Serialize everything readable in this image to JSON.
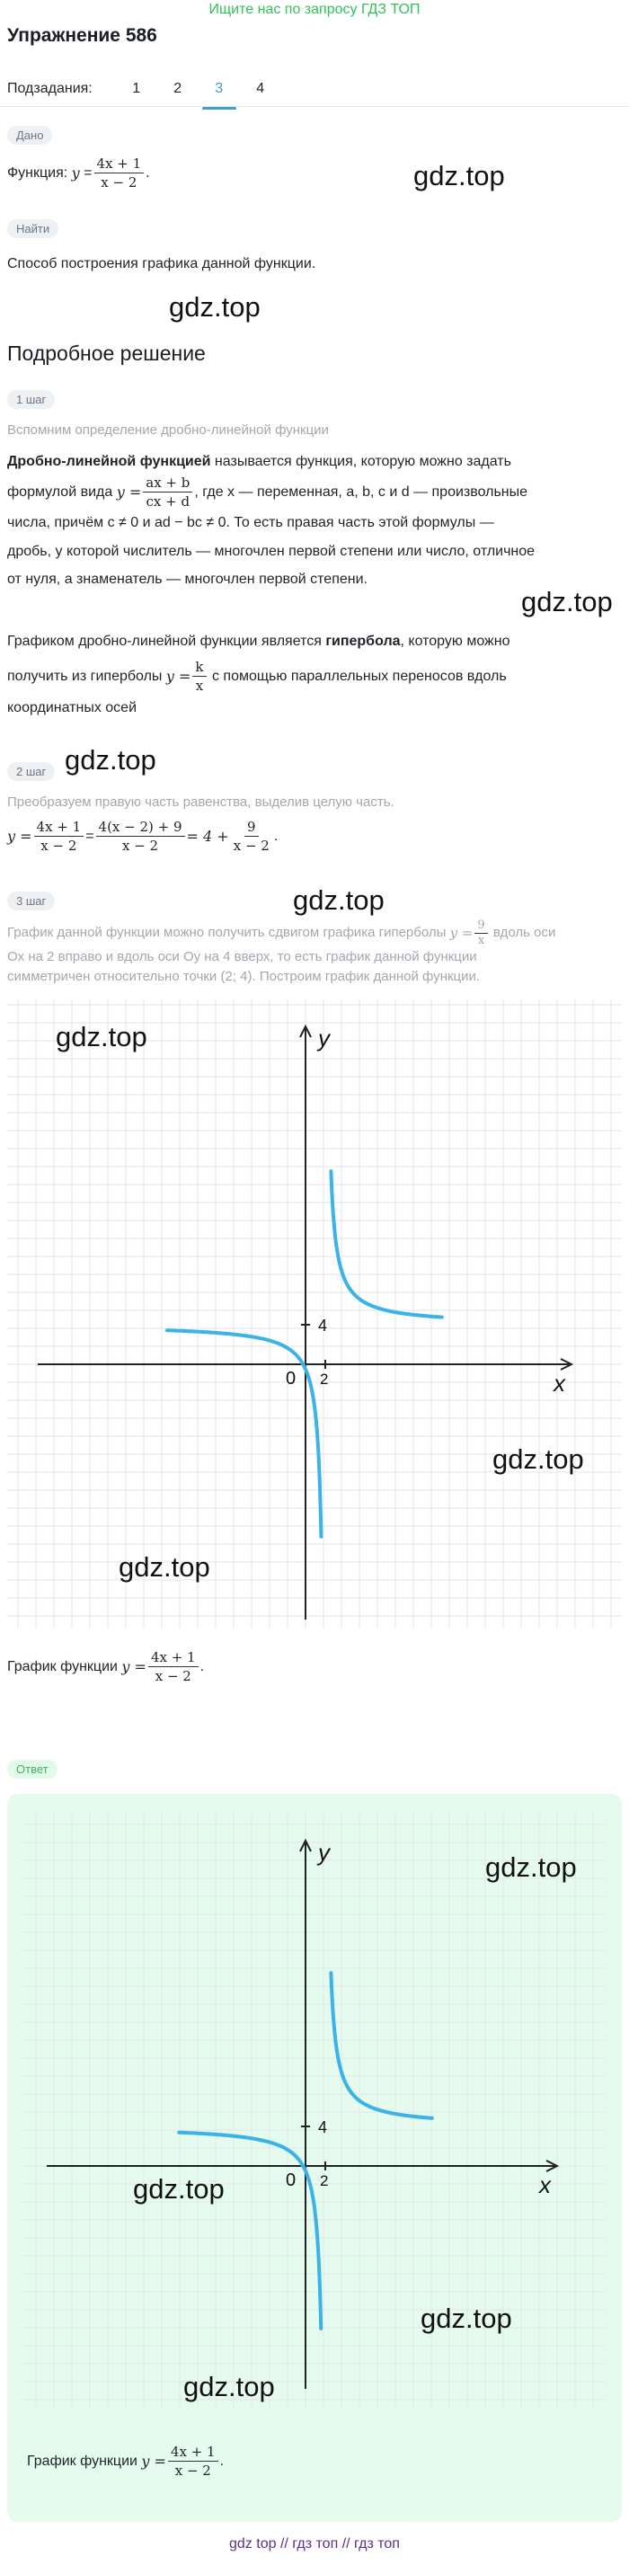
{
  "banner": "Ищите нас по запросу ГДЗ ТОП",
  "title": "Упражнение 586",
  "subtasks": {
    "label": "Подзадания:",
    "tabs": [
      "1",
      "2",
      "3",
      "4"
    ],
    "active": "3"
  },
  "given": {
    "chip": "Дано",
    "prefix": "Функция:",
    "y": "y",
    "num": "4x + 1",
    "den": "x − 2",
    "suffix": "."
  },
  "find": {
    "chip": "Найти",
    "text": "Способ построения графика данной функции."
  },
  "watermark": "gdz.top",
  "solution": {
    "heading": "Подробное решение",
    "step1": {
      "chip": "1 шаг",
      "hint": "Вспомним определение дробно-линейной функции",
      "p1_bold": "Дробно-линейной функцией",
      "p1_a": " называется функция, которую можно задать",
      "p1_b": "формулой вида",
      "p1_y": "y =",
      "p1_num": "ax + b",
      "p1_den": "cx + d",
      "p1_c": ", где x — переменная, a, b, c и d — произвольные",
      "p1_d": "числа, причём c ≠ 0 и ad − bc ≠ 0. То есть правая часть этой формулы —",
      "p1_e": "дробь, у которой числитель — многочлен первой степени или число, отличное",
      "p1_f": "от нуля, а знаменатель — многочлен первой степени.",
      "p2_a": "Графиком дробно-линейной функции является ",
      "p2_bold": "гипербола",
      "p2_b": ", которую можно",
      "p2_c": "получить из гиперболы",
      "p2_y": "y =",
      "p2_num": "k",
      "p2_den": "x",
      "p2_d": "с помощью параллельных переносов вдоль",
      "p2_e": "координатных осей"
    },
    "step2": {
      "chip": "2 шаг",
      "hint": "Преобразуем правую часть равенства, выделив целую часть.",
      "y": "y =",
      "f1_num": "4x + 1",
      "f1_den": "x − 2",
      "eq": "=",
      "f2_num": "4(x − 2) + 9",
      "f2_den": "x − 2",
      "mid": "= 4 +",
      "f3_num": "9",
      "f3_den": "x − 2",
      "end": "."
    },
    "step3": {
      "chip": "3 шаг",
      "l1_a": "График данной функции можно получить сдвигом графика гиперболы",
      "l1_y": "y =",
      "l1_num": "9",
      "l1_den": "x",
      "l1_b": "вдоль оси",
      "l2": "Ox на 2 вправо и вдоль оси Oy на 4 вверх, то есть график данной функции",
      "l3": "симметричен относительно точки (2; 4). Построим график данной функции."
    },
    "graph_caption": {
      "prefix": "График функции",
      "y": "y =",
      "num": "4x + 1",
      "den": "x − 2",
      "suffix": "."
    }
  },
  "answer": {
    "chip": "Ответ",
    "caption": {
      "prefix": "График функции",
      "y": "y =",
      "num": "4x + 1",
      "den": "x − 2",
      "suffix": "."
    }
  },
  "graph_labels": {
    "y": "y",
    "x": "x",
    "origin": "0",
    "x_tick": "2",
    "y_tick": "4"
  },
  "colors": {
    "curve": "#3bb3e6",
    "accent": "#3aa0cf",
    "banner": "#2fc35a",
    "answer_bg": "#e5fbed"
  },
  "footer": "gdz top  //  гдз топ  //  гдз топ"
}
